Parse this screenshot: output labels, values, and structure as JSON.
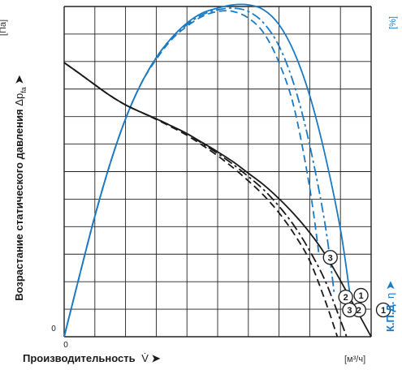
{
  "chart_data": {
    "type": "line",
    "xlabel": "Производительность",
    "xsymbol": "V̇",
    "xunit": "[м³/ч]",
    "ylabel_left": "Возрастание статического давления",
    "ylabel_left_symbol": "Δp",
    "ylabel_left_subscript": "fa",
    "ylabel_left_unit": "[Па]",
    "ylabel_right": "К.П.Д.",
    "ylabel_right_symbol": "η",
    "ylabel_right_unit": "[%]",
    "x_tick_labels": [
      "0"
    ],
    "y_tick_labels": [
      "0"
    ],
    "xlim": [
      0,
      10
    ],
    "ylim": [
      0,
      10
    ],
    "grid": true,
    "colors": {
      "pressure": "#1a1a1a",
      "efficiency": "#1a7ac4",
      "grid": "#222222"
    },
    "pressure_series": [
      {
        "label": "1",
        "style": "solid",
        "x": [
          0,
          0.5,
          1,
          1.5,
          2,
          2.5,
          3,
          3.5,
          4,
          4.5,
          5,
          5.5,
          6,
          6.5,
          7,
          7.5,
          8,
          8.5,
          9,
          9.5,
          10
        ],
        "y": [
          8.3,
          7.97,
          7.63,
          7.3,
          7.02,
          6.8,
          6.6,
          6.38,
          6.15,
          5.88,
          5.6,
          5.3,
          4.95,
          4.6,
          4.18,
          3.7,
          3.15,
          2.5,
          1.7,
          0.85,
          0
        ]
      },
      {
        "label": "2",
        "style": "dashdot",
        "x": [
          0,
          0.5,
          1,
          1.5,
          2,
          2.5,
          3,
          3.5,
          4,
          4.5,
          5,
          5.5,
          6,
          6.5,
          7,
          7.5,
          8,
          8.5,
          9,
          9.2
        ],
        "y": [
          8.3,
          7.97,
          7.63,
          7.3,
          7.02,
          6.8,
          6.6,
          6.38,
          6.15,
          5.85,
          5.55,
          5.22,
          4.85,
          4.45,
          3.95,
          3.35,
          2.6,
          1.7,
          0.5,
          0
        ]
      },
      {
        "label": "3",
        "style": "dashed",
        "x": [
          0,
          0.5,
          1,
          1.5,
          2,
          2.5,
          3,
          3.5,
          4,
          4.5,
          5,
          5.5,
          6,
          6.5,
          7,
          7.5,
          8,
          8.5,
          8.9
        ],
        "y": [
          8.3,
          7.97,
          7.63,
          7.3,
          7.02,
          6.8,
          6.58,
          6.35,
          6.1,
          5.8,
          5.48,
          5.12,
          4.72,
          4.28,
          3.75,
          3.1,
          2.3,
          1.1,
          0
        ]
      }
    ],
    "efficiency_series": [
      {
        "label": "1",
        "style": "solid",
        "x": [
          0,
          0.5,
          1,
          1.5,
          2,
          2.5,
          3,
          3.5,
          4,
          4.5,
          5,
          5.5,
          6,
          6.5,
          7,
          7.5,
          8,
          8.5,
          9,
          9.3
        ],
        "y": [
          0,
          1.85,
          3.65,
          5.25,
          6.6,
          7.65,
          8.45,
          9.05,
          9.5,
          9.8,
          9.95,
          10.05,
          10.05,
          9.9,
          9.45,
          8.6,
          7.3,
          5.5,
          3.25,
          1.35
        ]
      },
      {
        "label": "2",
        "style": "dashdot",
        "x": [
          0,
          0.5,
          1,
          1.5,
          2,
          2.5,
          3,
          3.5,
          4,
          4.5,
          5,
          5.5,
          6,
          6.5,
          7,
          7.5,
          8,
          8.5,
          8.8
        ],
        "y": [
          0,
          1.85,
          3.65,
          5.25,
          6.6,
          7.65,
          8.45,
          9.05,
          9.45,
          9.75,
          9.9,
          9.95,
          9.85,
          9.5,
          8.8,
          7.6,
          5.8,
          3.4,
          1.3
        ]
      },
      {
        "label": "3",
        "style": "dashed",
        "x": [
          0,
          0.5,
          1,
          1.5,
          2,
          2.5,
          3,
          3.5,
          4,
          4.5,
          5,
          5.5,
          6,
          6.5,
          7,
          7.5,
          8,
          8.3
        ],
        "y": [
          0,
          1.85,
          3.65,
          5.25,
          6.6,
          7.65,
          8.4,
          9.0,
          9.4,
          9.7,
          9.85,
          9.85,
          9.65,
          9.2,
          8.3,
          6.9,
          4.5,
          2.5
        ]
      }
    ]
  }
}
